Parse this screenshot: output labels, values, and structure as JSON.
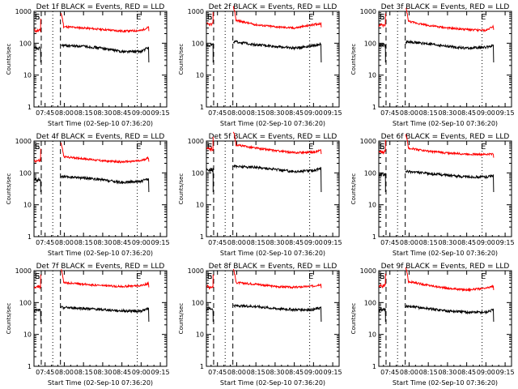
{
  "colors": {
    "events": "#000000",
    "lld": "#ff0000",
    "axes": "#000000",
    "background": "#ffffff"
  },
  "axis_text": {
    "ylabel": "Counts/sec",
    "xlabel": "Start Time (02-Sep-10 07:36:20)",
    "xticks": [
      "07:45",
      "08:00",
      "08:15",
      "08:30",
      "08:45",
      "09:00",
      "09:15"
    ],
    "yticks": [
      "1",
      "10",
      "100",
      "1000"
    ],
    "marker_S": "S",
    "marker_E": "E"
  },
  "chart_data": [
    {
      "type": "line",
      "title": "Det 1f BLACK = Events, RED = LLD",
      "detector": "1f",
      "xlabel": "Start Time (02-Sep-10 07:36:20)",
      "ylabel": "Counts/sec",
      "yscale": "log",
      "ylim": [
        1,
        1000
      ],
      "xlim": [
        "07:36:20",
        "09:20"
      ],
      "x": [
        "08:00",
        "08:15",
        "08:30",
        "08:45",
        "09:00",
        "09:06"
      ],
      "series": [
        {
          "name": "LLD",
          "color": "#ff0000",
          "values": [
            330,
            300,
            270,
            240,
            250,
            320
          ]
        },
        {
          "name": "Events",
          "color": "#000000",
          "values": [
            85,
            80,
            70,
            55,
            55,
            75
          ]
        }
      ],
      "dashed_lines": [
        "07:42",
        "07:57"
      ],
      "dotted_lines": [
        "07:51",
        "08:57"
      ],
      "markers": {
        "S": "07:39",
        "E": "08:58"
      }
    },
    {
      "type": "line",
      "title": "Det 2f BLACK = Events, RED = LLD",
      "detector": "2f",
      "xlabel": "Start Time (02-Sep-10 07:36:20)",
      "ylabel": "Counts/sec",
      "yscale": "log",
      "ylim": [
        1,
        1000
      ],
      "xlim": [
        "07:36:20",
        "09:20"
      ],
      "x": [
        "08:00",
        "08:15",
        "08:30",
        "08:45",
        "09:00",
        "09:06"
      ],
      "series": [
        {
          "name": "LLD",
          "color": "#ff0000",
          "values": [
            520,
            380,
            330,
            300,
            380,
            420
          ]
        },
        {
          "name": "Events",
          "color": "#000000",
          "values": [
            110,
            90,
            80,
            70,
            85,
            95
          ]
        }
      ],
      "dashed_lines": [
        "07:42",
        "07:57"
      ],
      "dotted_lines": [
        "07:51",
        "08:57"
      ],
      "markers": {
        "S": "07:39",
        "E": "08:58"
      }
    },
    {
      "type": "line",
      "title": "Det 3f BLACK = Events, RED = LLD",
      "detector": "3f",
      "xlabel": "Start Time (02-Sep-10 07:36:20)",
      "ylabel": "Counts/sec",
      "yscale": "log",
      "ylim": [
        1,
        1000
      ],
      "xlim": [
        "07:36:20",
        "09:20"
      ],
      "x": [
        "08:00",
        "08:15",
        "08:30",
        "08:45",
        "09:00",
        "09:06"
      ],
      "series": [
        {
          "name": "LLD",
          "color": "#ff0000",
          "values": [
            480,
            360,
            300,
            270,
            250,
            350
          ]
        },
        {
          "name": "Events",
          "color": "#000000",
          "values": [
            110,
            95,
            80,
            70,
            75,
            85
          ]
        }
      ],
      "dashed_lines": [
        "07:42",
        "07:57"
      ],
      "dotted_lines": [
        "07:51",
        "08:57"
      ],
      "markers": {
        "S": "07:39",
        "E": "08:58"
      }
    },
    {
      "type": "line",
      "title": "Det 4f BLACK = Events, RED = LLD",
      "detector": "4f",
      "xlabel": "Start Time (02-Sep-10 07:36:20)",
      "ylabel": "Counts/sec",
      "yscale": "log",
      "ylim": [
        1,
        1000
      ],
      "xlim": [
        "07:36:20",
        "09:20"
      ],
      "x": [
        "08:00",
        "08:15",
        "08:30",
        "08:45",
        "09:00",
        "09:06"
      ],
      "series": [
        {
          "name": "LLD",
          "color": "#ff0000",
          "values": [
            320,
            280,
            240,
            220,
            240,
            300
          ]
        },
        {
          "name": "Events",
          "color": "#000000",
          "values": [
            75,
            70,
            60,
            50,
            55,
            65
          ]
        }
      ],
      "dashed_lines": [
        "07:42",
        "07:57"
      ],
      "dotted_lines": [
        "07:51",
        "08:57"
      ],
      "markers": {
        "S": "07:39",
        "E": "08:58"
      }
    },
    {
      "type": "line",
      "title": "Det 5f BLACK = Events, RED = LLD",
      "detector": "5f",
      "xlabel": "Start Time (02-Sep-10 07:36:20)",
      "ylabel": "Counts/sec",
      "yscale": "log",
      "ylim": [
        1,
        1000
      ],
      "xlim": [
        "07:36:20",
        "09:20"
      ],
      "x": [
        "08:00",
        "08:15",
        "08:30",
        "08:45",
        "09:00",
        "09:06"
      ],
      "series": [
        {
          "name": "LLD",
          "color": "#ff0000",
          "values": [
            750,
            600,
            500,
            430,
            450,
            520
          ]
        },
        {
          "name": "Events",
          "color": "#000000",
          "values": [
            160,
            150,
            130,
            110,
            120,
            140
          ]
        }
      ],
      "dashed_lines": [
        "07:42",
        "07:57"
      ],
      "dotted_lines": [
        "07:51",
        "08:57"
      ],
      "markers": {
        "S": "07:39",
        "E": "08:58"
      }
    },
    {
      "type": "line",
      "title": "Det 6f BLACK = Events, RED = LLD",
      "detector": "6f",
      "xlabel": "Start Time (02-Sep-10 07:36:20)",
      "ylabel": "Counts/sec",
      "yscale": "log",
      "ylim": [
        1,
        1000
      ],
      "xlim": [
        "07:36:20",
        "09:20"
      ],
      "x": [
        "08:00",
        "08:15",
        "08:30",
        "08:45",
        "09:00",
        "09:06"
      ],
      "series": [
        {
          "name": "LLD",
          "color": "#ff0000",
          "values": [
            600,
            480,
            420,
            390,
            380,
            400
          ]
        },
        {
          "name": "Events",
          "color": "#000000",
          "values": [
            110,
            95,
            85,
            75,
            75,
            85
          ]
        }
      ],
      "dashed_lines": [
        "07:42",
        "07:57"
      ],
      "dotted_lines": [
        "07:51",
        "08:57"
      ],
      "markers": {
        "S": "07:39",
        "E": "08:58"
      }
    },
    {
      "type": "line",
      "title": "Det 7f BLACK = Events, RED = LLD",
      "detector": "7f",
      "xlabel": "Start Time (02-Sep-10 07:36:20)",
      "ylabel": "Counts/sec",
      "yscale": "log",
      "ylim": [
        1,
        1000
      ],
      "xlim": [
        "07:36:20",
        "09:20"
      ],
      "x": [
        "08:00",
        "08:15",
        "08:30",
        "08:45",
        "09:00",
        "09:06"
      ],
      "series": [
        {
          "name": "LLD",
          "color": "#ff0000",
          "values": [
            420,
            380,
            340,
            320,
            340,
            400
          ]
        },
        {
          "name": "Events",
          "color": "#000000",
          "values": [
            70,
            65,
            60,
            55,
            55,
            65
          ]
        }
      ],
      "dashed_lines": [
        "07:42",
        "07:57"
      ],
      "dotted_lines": [
        "07:51",
        "08:57"
      ],
      "markers": {
        "S": "07:39",
        "E": "08:58"
      }
    },
    {
      "type": "line",
      "title": "Det 8f BLACK = Events, RED = LLD",
      "detector": "8f",
      "xlabel": "Start Time (02-Sep-10 07:36:20)",
      "ylabel": "Counts/sec",
      "yscale": "log",
      "ylim": [
        1,
        1000
      ],
      "xlim": [
        "07:36:20",
        "09:20"
      ],
      "x": [
        "08:00",
        "08:15",
        "08:30",
        "08:45",
        "09:00",
        "09:06"
      ],
      "series": [
        {
          "name": "LLD",
          "color": "#ff0000",
          "values": [
            420,
            380,
            320,
            300,
            330,
            380
          ]
        },
        {
          "name": "Events",
          "color": "#000000",
          "values": [
            80,
            75,
            65,
            60,
            60,
            70
          ]
        }
      ],
      "dashed_lines": [
        "07:42",
        "07:57"
      ],
      "dotted_lines": [
        "07:51",
        "08:57"
      ],
      "markers": {
        "S": "07:39",
        "E": "08:58"
      }
    },
    {
      "type": "line",
      "title": "Det 9f BLACK = Events, RED = LLD",
      "detector": "9f",
      "xlabel": "Start Time (02-Sep-10 07:36:20)",
      "ylabel": "Counts/sec",
      "yscale": "log",
      "ylim": [
        1,
        1000
      ],
      "xlim": [
        "07:36:20",
        "09:20"
      ],
      "x": [
        "08:00",
        "08:15",
        "08:30",
        "08:45",
        "09:00",
        "09:06"
      ],
      "series": [
        {
          "name": "LLD",
          "color": "#ff0000",
          "values": [
            450,
            350,
            280,
            250,
            280,
            330
          ]
        },
        {
          "name": "Events",
          "color": "#000000",
          "values": [
            75,
            65,
            55,
            50,
            50,
            60
          ]
        }
      ],
      "dashed_lines": [
        "07:42",
        "07:57"
      ],
      "dotted_lines": [
        "07:51",
        "08:57"
      ],
      "markers": {
        "S": "07:39",
        "E": "08:58"
      }
    }
  ]
}
